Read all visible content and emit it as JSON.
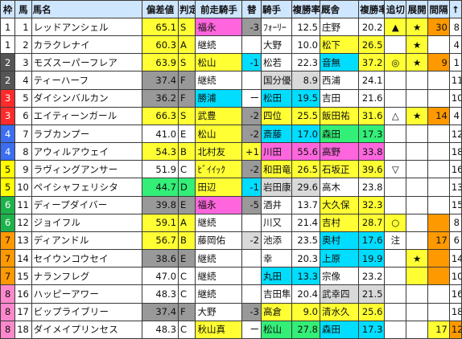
{
  "headers": {
    "waku": "枠",
    "num": "馬",
    "name": "馬名",
    "rating": "偏差値",
    "grade": "判定",
    "prev_jockey": "前走騎手",
    "change": "替",
    "jockey": "騎手",
    "jockey_rate": "複勝率",
    "trainer": "厩舎",
    "trainer_rate": "複勝率",
    "oikiri": "追切",
    "tenkai": "展開",
    "interval": "間隔",
    "rank": "↑"
  },
  "rows": [
    {
      "waku": "1",
      "num": "1",
      "name": "レッドアンシェル",
      "rating": "65.1",
      "grade": "S",
      "prev_jockey": "福永",
      "change": "-3",
      "jockey": "ﾌｫｰﾘｰ",
      "jockey_rate": "12.5",
      "trainer": "庄野",
      "trainer_rate": "20.2",
      "oikiri": "▲",
      "tenkai": "★",
      "interval": "30",
      "rank": "8"
    },
    {
      "waku": "1",
      "num": "2",
      "name": "カラクレナイ",
      "rating": "60.3",
      "grade": "A",
      "prev_jockey": "継続",
      "change": "",
      "jockey": "大野",
      "jockey_rate": "10.0",
      "trainer": "松下",
      "trainer_rate": "26.5",
      "oikiri": "",
      "tenkai": "★",
      "interval": "",
      "rank": "4"
    },
    {
      "waku": "2",
      "num": "3",
      "name": "モズスーパーフレア",
      "rating": "63.9",
      "grade": "S",
      "prev_jockey": "松山",
      "change": "-1",
      "jockey": "松若",
      "jockey_rate": "22.3",
      "trainer": "音無",
      "trainer_rate": "37.2",
      "oikiri": "◎",
      "tenkai": "★",
      "interval": "9",
      "rank": "1"
    },
    {
      "waku": "2",
      "num": "4",
      "name": "ティーハーフ",
      "rating": "37.4",
      "grade": "F",
      "prev_jockey": "継続",
      "change": "",
      "jockey": "国分優",
      "jockey_rate": "8.9",
      "trainer": "西浦",
      "trainer_rate": "24.1",
      "oikiri": "",
      "tenkai": "",
      "interval": "",
      "rank": "11"
    },
    {
      "waku": "3",
      "num": "5",
      "name": "ダイシンバルカン",
      "rating": "36.2",
      "grade": "F",
      "prev_jockey": "勝浦",
      "change": "ー",
      "jockey": "松田",
      "jockey_rate": "19.5",
      "trainer": "吉田",
      "trainer_rate": "21.6",
      "oikiri": "",
      "tenkai": "",
      "interval": "",
      "rank": "10"
    },
    {
      "waku": "3",
      "num": "6",
      "name": "エイティーンガール",
      "rating": "66.3",
      "grade": "S",
      "prev_jockey": "武豊",
      "change": "-2",
      "jockey": "四位",
      "jockey_rate": "25.5",
      "trainer": "飯田祐",
      "trainer_rate": "31.6",
      "oikiri": "△",
      "tenkai": "★",
      "interval": "14",
      "rank": "4"
    },
    {
      "waku": "4",
      "num": "7",
      "name": "ラブカンプー",
      "rating": "41.0",
      "grade": "E",
      "prev_jockey": "松山",
      "change": "-2",
      "jockey": "斎藤",
      "jockey_rate": "17.0",
      "trainer": "森田",
      "trainer_rate": "17.3",
      "oikiri": "",
      "tenkai": "",
      "interval": "",
      "rank": "12"
    },
    {
      "waku": "4",
      "num": "8",
      "name": "アウィルアウェイ",
      "rating": "54.3",
      "grade": "B",
      "prev_jockey": "北村友",
      "change": "+1",
      "jockey": "川田",
      "jockey_rate": "55.6",
      "trainer": "高野",
      "trainer_rate": "33.8",
      "oikiri": "",
      "tenkai": "",
      "interval": "",
      "rank": "18"
    },
    {
      "waku": "5",
      "num": "9",
      "name": "ラヴィングアンサー",
      "rating": "51.9",
      "grade": "C",
      "prev_jockey": "ﾋﾞｲｲｯｸ",
      "change": "-2",
      "jockey": "和田竜",
      "jockey_rate": "26.5",
      "trainer": "石坂正",
      "trainer_rate": "39.6",
      "oikiri": "▽",
      "tenkai": "",
      "interval": "",
      "rank": "16"
    },
    {
      "waku": "5",
      "num": "10",
      "name": "ペイシャフェリシタ",
      "rating": "44.7",
      "grade": "D",
      "prev_jockey": "田辺",
      "change": "-1",
      "jockey": "岩田康",
      "jockey_rate": "29.6",
      "trainer": "高木",
      "trainer_rate": "23.8",
      "oikiri": "",
      "tenkai": "",
      "interval": "",
      "rank": "13"
    },
    {
      "waku": "6",
      "num": "11",
      "name": "ディープダイバー",
      "rating": "39.8",
      "grade": "E",
      "prev_jockey": "福永",
      "change": "-5",
      "jockey": "酒井",
      "jockey_rate": "13.7",
      "trainer": "大久保",
      "trainer_rate": "32.3",
      "oikiri": "",
      "tenkai": "",
      "interval": "",
      "rank": "15"
    },
    {
      "waku": "6",
      "num": "12",
      "name": "ジョイフル",
      "rating": "59.1",
      "grade": "A",
      "prev_jockey": "継続",
      "change": "",
      "jockey": "川又",
      "jockey_rate": "21.4",
      "trainer": "吉村",
      "trainer_rate": "28.7",
      "oikiri": "○",
      "tenkai": "",
      "interval": "",
      "rank": "8"
    },
    {
      "waku": "7",
      "num": "13",
      "name": "ディアンドル",
      "rating": "56.7",
      "grade": "B",
      "prev_jockey": "藤岡佑",
      "change": "-2",
      "jockey": "池添",
      "jockey_rate": "23.5",
      "trainer": "奥村",
      "trainer_rate": "17.6",
      "oikiri": "注",
      "tenkai": "",
      "interval": "17",
      "rank": "6"
    },
    {
      "waku": "7",
      "num": "14",
      "name": "セイウンコウセイ",
      "rating": "38.6",
      "grade": "E",
      "prev_jockey": "継続",
      "change": "",
      "jockey": "幸",
      "jockey_rate": "20.3",
      "trainer": "上原",
      "trainer_rate": "19.9",
      "oikiri": "",
      "tenkai": "★",
      "interval": "",
      "rank": "14"
    },
    {
      "waku": "7",
      "num": "15",
      "name": "ナランフレグ",
      "rating": "47.0",
      "grade": "C",
      "prev_jockey": "継続",
      "change": "",
      "jockey": "丸田",
      "jockey_rate": "13.3",
      "trainer": "宗像",
      "trainer_rate": "23.2",
      "oikiri": "",
      "tenkai": "",
      "interval": "",
      "rank": "10"
    },
    {
      "waku": "8",
      "num": "16",
      "name": "ハッピーアワー",
      "rating": "48.3",
      "grade": "C",
      "prev_jockey": "継続",
      "change": "",
      "jockey": "吉田隼",
      "jockey_rate": "20.4",
      "trainer": "武幸四",
      "trainer_rate": "21.5",
      "oikiri": "",
      "tenkai": "",
      "interval": "",
      "rank": "16"
    },
    {
      "waku": "8",
      "num": "17",
      "name": "ビップライブリー",
      "rating": "37.4",
      "grade": "F",
      "prev_jockey": "大野",
      "change": "-3",
      "jockey": "高倉",
      "jockey_rate": "9.0",
      "trainer": "清水久",
      "trainer_rate": "25.6",
      "oikiri": "",
      "tenkai": "",
      "interval": "",
      "rank": "18"
    },
    {
      "waku": "8",
      "num": "18",
      "name": "ダイメイプリンセス",
      "rating": "48.3",
      "grade": "C",
      "prev_jockey": "秋山真",
      "change": "ー",
      "jockey": "松山",
      "jockey_rate": "27.8",
      "trainer": "森田",
      "trainer_rate": "17.3",
      "oikiri": "",
      "tenkai": "",
      "interval": "17",
      "rank": "12"
    }
  ],
  "colors": {
    "waku": {
      "1": "#ffffff",
      "2": "#555555",
      "3": "#ff2a2a",
      "4": "#3b6ef0",
      "5": "#ffff00",
      "6": "#1db34a",
      "7": "#ff9900",
      "8": "#ff88cc"
    },
    "header_bg": "#cfe6ff",
    "yellow": "#ffff33",
    "pink": "#ff66dd",
    "green": "#33ee77",
    "cyan": "#00ddff",
    "orange": "#ff9900",
    "gray": "#999999",
    "light_gray": "#d9d9d9"
  },
  "icons": {
    "rank_header": "up-arrow-icon"
  }
}
